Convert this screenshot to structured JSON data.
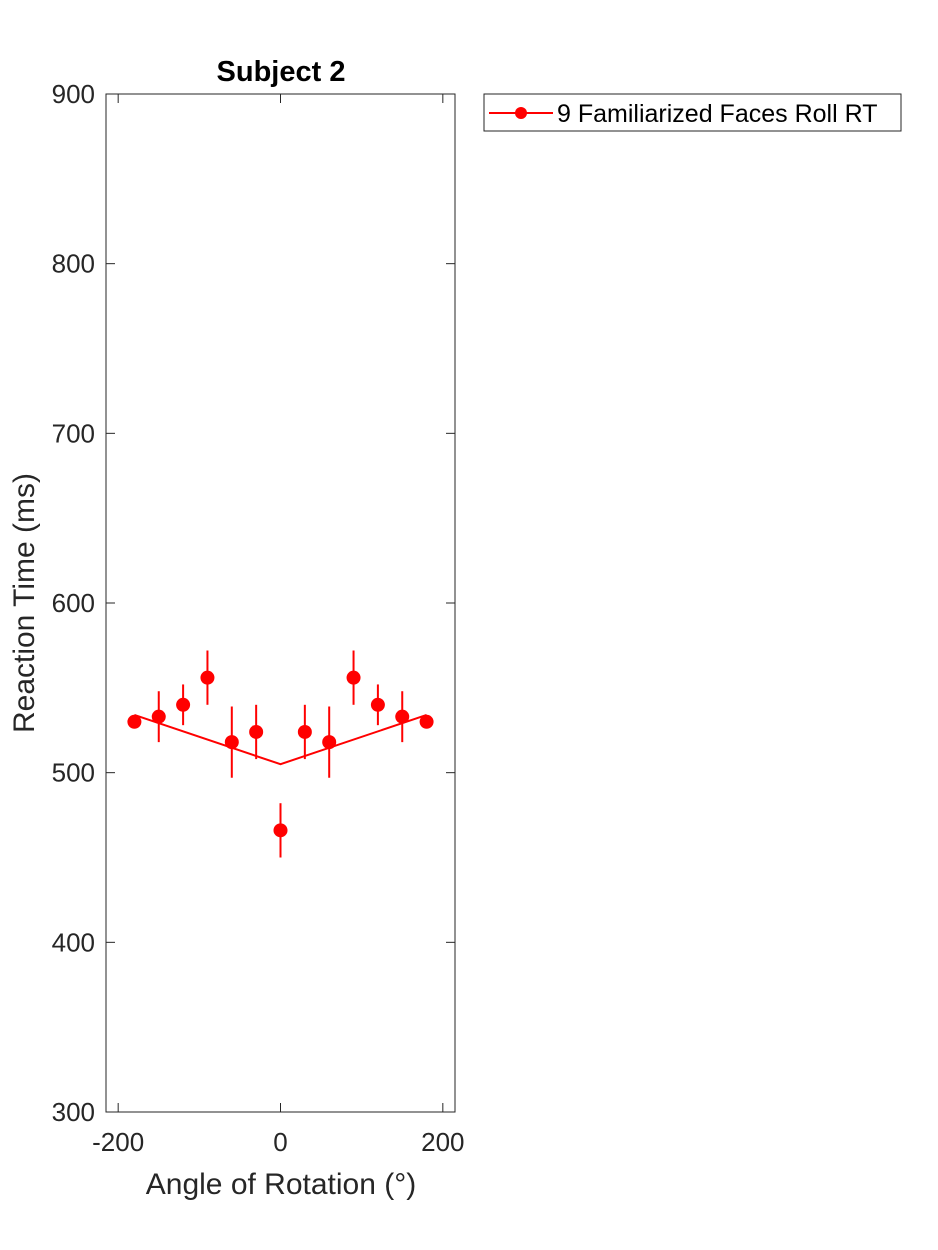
{
  "chart_data": {
    "type": "scatter",
    "title": "Subject 2",
    "xlabel": "Angle of Rotation (°)",
    "ylabel": "Reaction Time (ms)",
    "xlim": [
      -215,
      215
    ],
    "ylim": [
      300,
      900
    ],
    "x_ticks": [
      -200,
      0,
      200
    ],
    "y_ticks": [
      300,
      400,
      500,
      600,
      700,
      800,
      900
    ],
    "x_tick_labels": [
      "-200",
      "0",
      "200"
    ],
    "y_tick_labels": [
      "300",
      "400",
      "500",
      "600",
      "700",
      "800",
      "900"
    ],
    "grid": false,
    "legend_position": "outside-top-right",
    "colors": {
      "series": "#ff0000",
      "axis": "#262626"
    },
    "series": [
      {
        "name": "9 Familiarized Faces Roll RT",
        "marker": "filled-circle",
        "points": {
          "x": [
            -180,
            -150,
            -120,
            -90,
            -60,
            -30,
            0,
            30,
            60,
            90,
            120,
            150,
            180
          ],
          "y": [
            530,
            533,
            540,
            556,
            518,
            524,
            466,
            524,
            518,
            556,
            540,
            533,
            530
          ],
          "err": [
            0,
            15,
            12,
            16,
            21,
            16,
            16,
            16,
            21,
            16,
            12,
            15,
            0
          ]
        },
        "fit_line": {
          "x": [
            -180,
            0,
            180
          ],
          "y": [
            534,
            505,
            534
          ]
        }
      }
    ]
  }
}
